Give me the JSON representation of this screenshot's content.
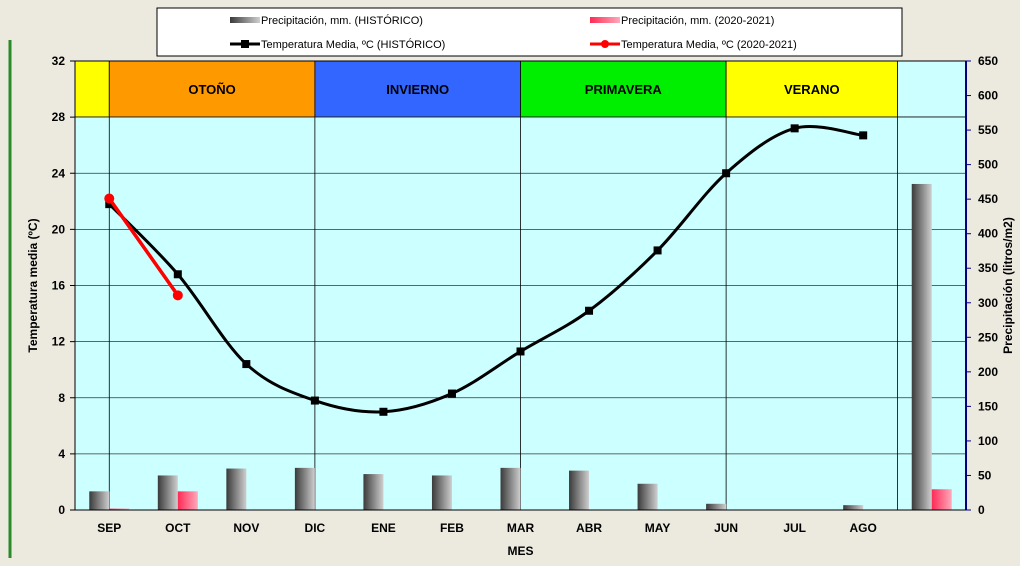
{
  "chart_data": {
    "type": "bar+line",
    "xlabel": "MES",
    "ylabel_left": "Temperatura media (ºC)",
    "ylabel_right": "Precipitación (litros/m2)",
    "categories": [
      "SEP",
      "OCT",
      "NOV",
      "DIC",
      "ENE",
      "FEB",
      "MAR",
      "ABR",
      "MAY",
      "JUN",
      "JUL",
      "AGO"
    ],
    "extra_slot_label": "",
    "y_left": {
      "min": 0,
      "max": 32,
      "ticks": [
        0,
        4,
        8,
        12,
        16,
        20,
        24,
        28,
        32
      ]
    },
    "y_right": {
      "min": 0,
      "max": 650,
      "ticks": [
        0,
        50,
        100,
        150,
        200,
        250,
        300,
        350,
        400,
        450,
        500,
        550,
        600,
        650
      ]
    },
    "legend": [
      {
        "label": "Precipitación, mm. (HISTÓRICO)",
        "kind": "bar",
        "color": "#555555"
      },
      {
        "label": "Precipitación, mm. (2020-2021)",
        "kind": "bar",
        "color": "#ff6688"
      },
      {
        "label": "Temperatura Media, ºC (HISTÓRICO)",
        "kind": "line",
        "color": "#000000"
      },
      {
        "label": "Temperatura Media, ºC (2020-2021)",
        "kind": "line",
        "color": "#ff0000"
      }
    ],
    "seasons": [
      {
        "label": "",
        "color": "#ffff00",
        "span": 0.5
      },
      {
        "label": "OTOÑO",
        "color": "#ff9900",
        "span": 3
      },
      {
        "label": "INVIERNO",
        "color": "#3366ff",
        "span": 3
      },
      {
        "label": "PRIMAVERA",
        "color": "#00ee00",
        "span": 3
      },
      {
        "label": "VERANO",
        "color": "#ffff00",
        "span": 2.5
      },
      {
        "label": "",
        "color": "#ccffff",
        "span": 1
      }
    ],
    "series": [
      {
        "name": "Precipitación, mm. (HISTÓRICO)",
        "type": "bar",
        "axis": "right",
        "values": [
          27,
          50,
          60,
          61,
          52,
          50,
          61,
          57,
          38,
          9,
          0,
          7
        ],
        "total": 472
      },
      {
        "name": "Precipitación, mm. (2020-2021)",
        "type": "bar",
        "axis": "right",
        "values": [
          2,
          27,
          null,
          null,
          null,
          null,
          null,
          null,
          null,
          null,
          null,
          null
        ],
        "total": 30
      },
      {
        "name": "Temperatura Media, ºC (HISTÓRICO)",
        "type": "line",
        "axis": "left",
        "values": [
          21.8,
          16.8,
          10.4,
          7.8,
          7.0,
          8.3,
          11.3,
          14.2,
          18.5,
          24.0,
          27.2,
          26.7
        ]
      },
      {
        "name": "Temperatura Media, ºC (2020-2021)",
        "type": "line",
        "axis": "left",
        "values": [
          22.2,
          15.3,
          null,
          null,
          null,
          null,
          null,
          null,
          null,
          null,
          null,
          null
        ]
      }
    ],
    "grid": true,
    "legend_position": "top"
  }
}
